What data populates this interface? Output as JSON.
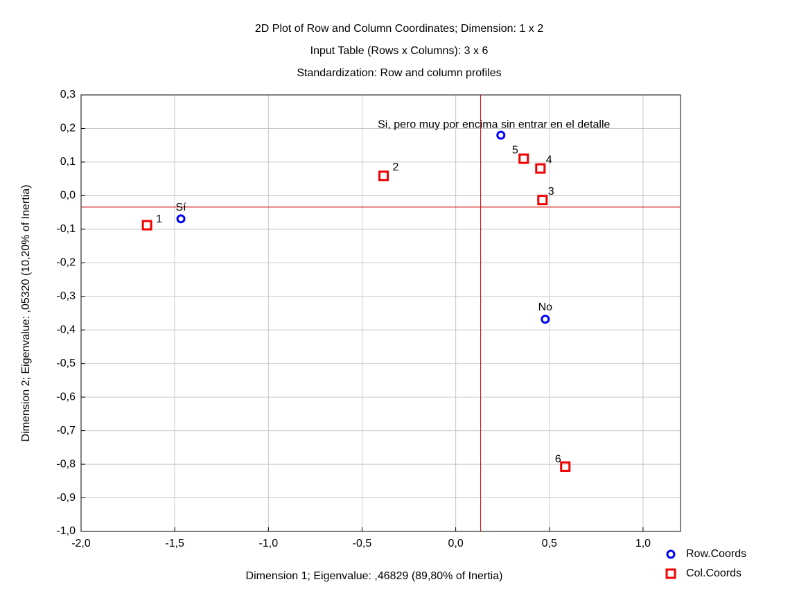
{
  "chart_data": {
    "type": "scatter",
    "title": "2D Plot of Row and Column Coordinates; Dimension:  1 x 2",
    "subtitle": [
      "Input Table (Rows x Columns): 3 x 6",
      "Standardization: Row and column profiles"
    ],
    "xlabel": "Dimension 1; Eigenvalue: ,46829 (89,80% of Inertia)",
    "ylabel": "Dimension 2; Eigenvalue: ,05320 (10,20% of Inertia)",
    "xlim": [
      -2,
      1.2
    ],
    "ylim": [
      -1,
      0.3
    ],
    "xticks": [
      {
        "value": -2,
        "label": "-2,0"
      },
      {
        "value": -1.5,
        "label": "-1,5"
      },
      {
        "value": -1,
        "label": "-1,0"
      },
      {
        "value": -0.5,
        "label": "-0,5"
      },
      {
        "value": 0,
        "label": "0,0"
      },
      {
        "value": 0.5,
        "label": "0,5"
      },
      {
        "value": 1,
        "label": "1,0"
      }
    ],
    "yticks": [
      {
        "value": 0.3,
        "label": "0,3"
      },
      {
        "value": 0.2,
        "label": "0,2"
      },
      {
        "value": 0.1,
        "label": "0,1"
      },
      {
        "value": 0,
        "label": "0,0"
      },
      {
        "value": -0.1,
        "label": "-0,1"
      },
      {
        "value": -0.2,
        "label": "-0,2"
      },
      {
        "value": -0.3,
        "label": "-0,3"
      },
      {
        "value": -0.4,
        "label": "-0,4"
      },
      {
        "value": -0.5,
        "label": "-0,5"
      },
      {
        "value": -0.6,
        "label": "-0,6"
      },
      {
        "value": -0.7,
        "label": "-0,7"
      },
      {
        "value": -0.8,
        "label": "-0,8"
      },
      {
        "value": -0.9,
        "label": "-0,9"
      },
      {
        "value": -1,
        "label": "-1,0"
      }
    ],
    "grid": true,
    "reference_lines": {
      "x": 0.133,
      "y": -0.034,
      "color": "#cc0000"
    },
    "legend": "bottom-right",
    "series": [
      {
        "name": "Row.Coords",
        "color": "#0000ff",
        "marker": "circle",
        "labels": [
          "Sí",
          "Si, pero muy por encima sin entrar en el detalle",
          "No"
        ],
        "x": [
          -1.467,
          0.241,
          0.478
        ],
        "y": [
          -0.069,
          0.18,
          -0.368
        ]
      },
      {
        "name": "Col.Coords",
        "color": "#ee0000",
        "marker": "square",
        "labels": [
          "1",
          "2",
          "3",
          "4",
          "5",
          "6"
        ],
        "x": [
          -1.648,
          -0.385,
          0.463,
          0.452,
          0.363,
          0.585
        ],
        "y": [
          -0.088,
          0.059,
          -0.013,
          0.081,
          0.11,
          -0.807
        ]
      }
    ]
  }
}
